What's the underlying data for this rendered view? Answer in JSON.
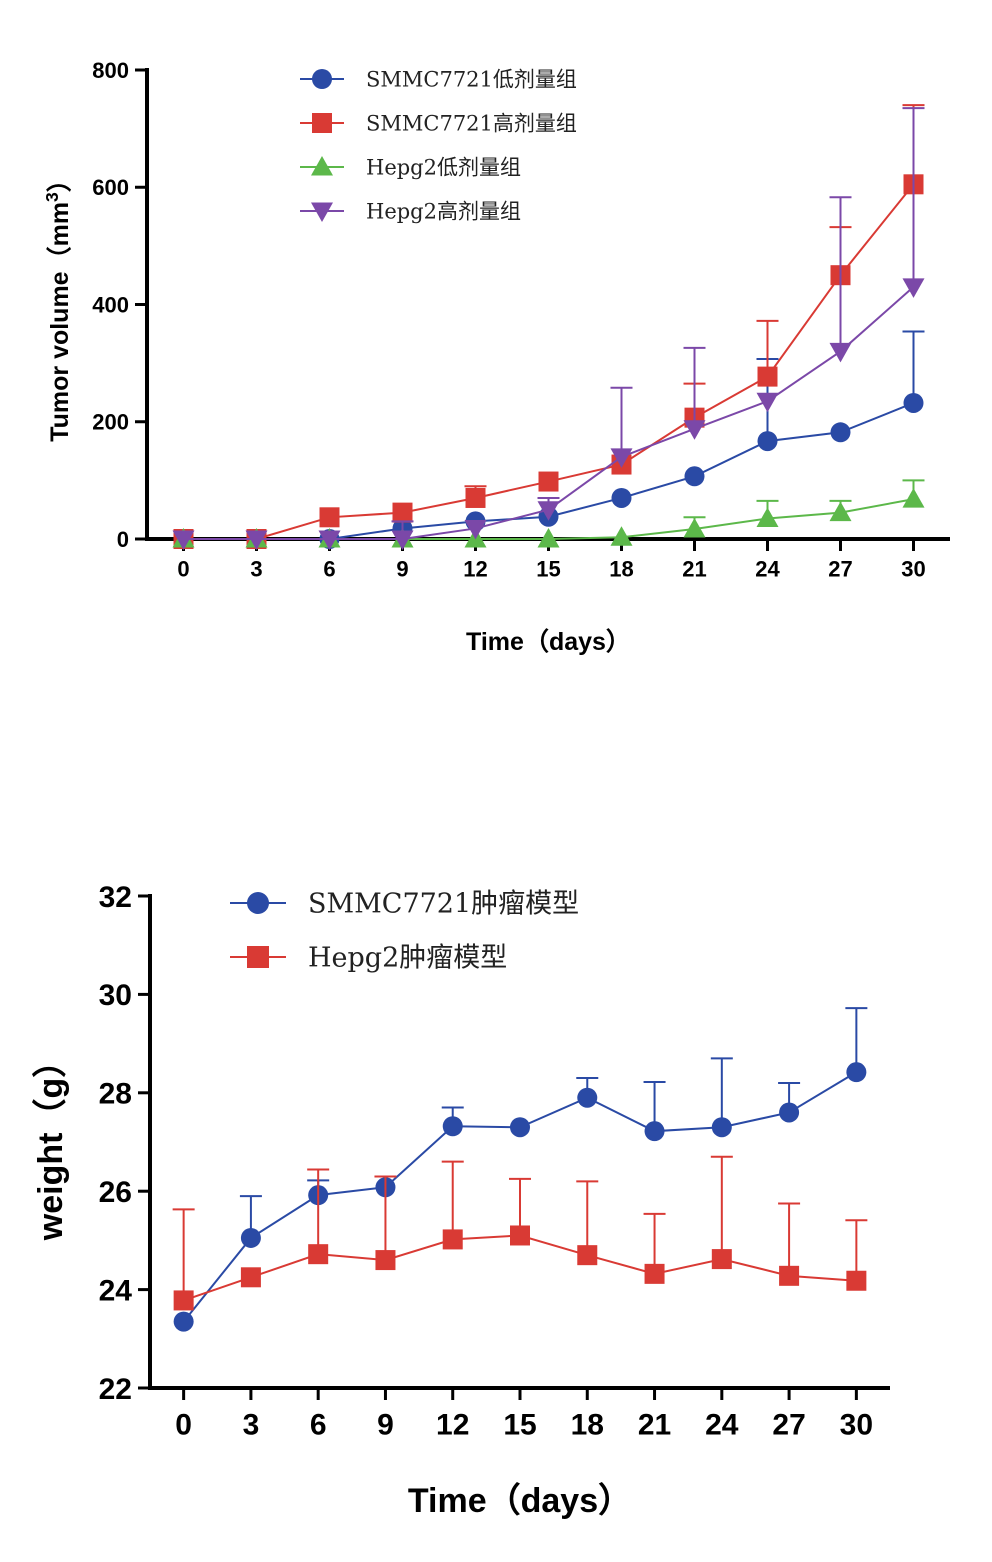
{
  "chart_data": [
    {
      "type": "line",
      "title": "",
      "xlabel": "Time（days）",
      "ylabel_main": "Tumor volume（mm",
      "ylabel_sup": "3",
      "ylabel_close": "）",
      "x": [
        0,
        3,
        6,
        9,
        12,
        15,
        18,
        21,
        24,
        27,
        30
      ],
      "xticks": [
        "0",
        "3",
        "6",
        "9",
        "12",
        "15",
        "18",
        "21",
        "24",
        "27",
        "30"
      ],
      "yticks": [
        "0",
        "200",
        "400",
        "600",
        "800"
      ],
      "xlim": [
        -1.5,
        31.5
      ],
      "ylim": [
        0,
        800
      ],
      "legend_position": "top-left",
      "series": [
        {
          "name": "SMMC7721低剂量组",
          "color": "#2a4aa5",
          "marker": "circle",
          "values": [
            0,
            0,
            0,
            18,
            30,
            38,
            70,
            107,
            167,
            182,
            232
          ],
          "errors": [
            0,
            0,
            0,
            0,
            0,
            0,
            0,
            0,
            140,
            0,
            122
          ]
        },
        {
          "name": "SMMC7721高剂量组",
          "color": "#d93a34",
          "marker": "square",
          "values": [
            0,
            0,
            37,
            45,
            70,
            98,
            127,
            207,
            277,
            450,
            605
          ],
          "errors": [
            0,
            0,
            0,
            0,
            20,
            0,
            0,
            58,
            95,
            82,
            135
          ]
        },
        {
          "name": "Hepg2低剂量组",
          "color": "#5cb84a",
          "marker": "triangle-up",
          "values": [
            0,
            0,
            0,
            0,
            0,
            0,
            3,
            17,
            35,
            45,
            68
          ],
          "errors": [
            0,
            0,
            0,
            0,
            0,
            0,
            0,
            20,
            30,
            20,
            32
          ]
        },
        {
          "name": "Hepg2高剂量组",
          "color": "#7b48a8",
          "marker": "triangle-down",
          "values": [
            0,
            0,
            0,
            0,
            18,
            50,
            140,
            188,
            235,
            320,
            430
          ],
          "errors": [
            0,
            0,
            0,
            30,
            0,
            20,
            118,
            138,
            0,
            263,
            305
          ]
        }
      ]
    },
    {
      "type": "line",
      "title": "",
      "xlabel": "Time（days）",
      "ylabel": "weight（g）",
      "x": [
        0,
        3,
        6,
        9,
        12,
        15,
        18,
        21,
        24,
        27,
        30
      ],
      "xticks": [
        "0",
        "3",
        "6",
        "9",
        "12",
        "15",
        "18",
        "21",
        "24",
        "27",
        "30"
      ],
      "yticks": [
        "22",
        "24",
        "26",
        "28",
        "30",
        "32"
      ],
      "xlim": [
        -1.5,
        31.5
      ],
      "ylim": [
        22,
        32
      ],
      "legend_position": "top-left",
      "series": [
        {
          "name": "SMMC7721肿瘤模型",
          "color": "#2a4aa5",
          "marker": "circle",
          "values": [
            23.35,
            25.05,
            25.92,
            26.08,
            27.32,
            27.3,
            27.9,
            27.22,
            27.3,
            27.6,
            28.42
          ],
          "errors": [
            0,
            0.85,
            0.3,
            0,
            0.38,
            0,
            0.4,
            1.0,
            1.4,
            0.6,
            1.3
          ]
        },
        {
          "name": "Hepg2肿瘤模型",
          "color": "#d93a34",
          "marker": "square",
          "values": [
            23.78,
            24.25,
            24.72,
            24.6,
            25.02,
            25.1,
            24.7,
            24.32,
            24.62,
            24.28,
            24.18
          ],
          "errors": [
            1.85,
            0,
            1.72,
            1.7,
            1.58,
            1.15,
            1.5,
            1.22,
            2.08,
            1.47,
            1.23
          ]
        }
      ]
    }
  ]
}
